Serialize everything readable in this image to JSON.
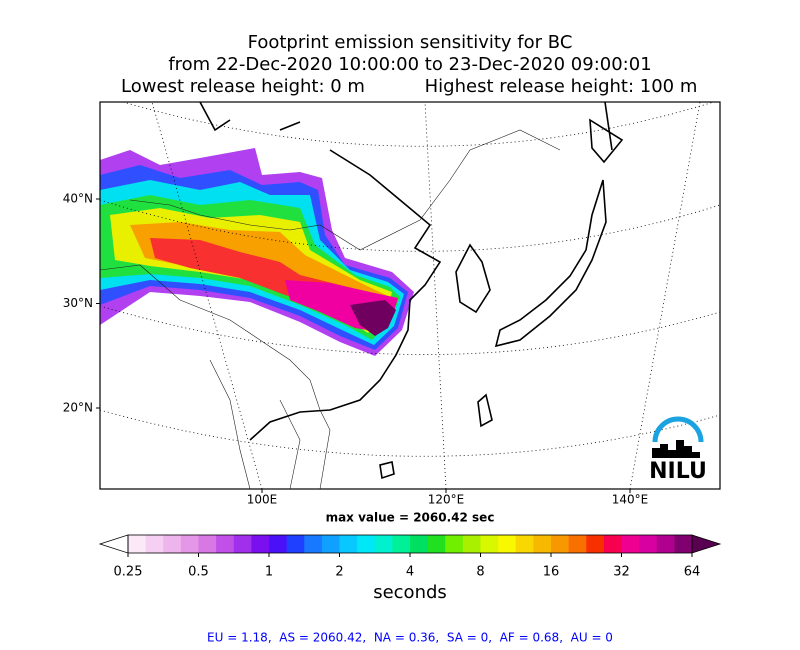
{
  "header": {
    "title_lines": [
      "Footprint emission sensitivity for BC",
      "from 22-Dec-2020 10:00:00 to 23-Dec-2020 09:00:01"
    ],
    "lowest": "Lowest release height: 0 m",
    "highest": "Highest release height: 100 m"
  },
  "map": {
    "lat_ticks": [
      {
        "value": 40,
        "label": "40°N"
      },
      {
        "value": 30,
        "label": "30°N"
      },
      {
        "value": 20,
        "label": "20°N"
      }
    ],
    "lon_ticks": [
      {
        "value": 100,
        "label": "100E"
      },
      {
        "value": 120,
        "label": "120°E"
      },
      {
        "value": 140,
        "label": "140°E"
      }
    ],
    "logo": "NILU"
  },
  "max_value_text": "max value = 2060.42 sec",
  "colorbar": {
    "scale": "log",
    "lim": [
      0.25,
      64
    ],
    "ticks": [
      0.25,
      0.5,
      1,
      2,
      4,
      8,
      16,
      32,
      64
    ],
    "colors": [
      "#fbe9f8",
      "#f5d0f2",
      "#eeb5ec",
      "#e497e6",
      "#d778e4",
      "#c050e8",
      "#a030ec",
      "#7a10f0",
      "#4a10f8",
      "#2040ff",
      "#1878ff",
      "#10a0ff",
      "#08c8ff",
      "#00e8f8",
      "#00f0d0",
      "#00f098",
      "#00e060",
      "#20e020",
      "#70f000",
      "#a8f000",
      "#d8f800",
      "#f8f800",
      "#f8d800",
      "#f8b800",
      "#f89800",
      "#f87000",
      "#f83000",
      "#f80050",
      "#f00090",
      "#d800a0",
      "#b00090",
      "#800070"
    ],
    "under_color": "#ffffff",
    "over_color": "#5a0050",
    "label": "seconds"
  },
  "footer": "EU = 1.18,  AS = 2060.42,  NA = 0.36,  SA = 0,  AF = 0.68,  AU = 0"
}
